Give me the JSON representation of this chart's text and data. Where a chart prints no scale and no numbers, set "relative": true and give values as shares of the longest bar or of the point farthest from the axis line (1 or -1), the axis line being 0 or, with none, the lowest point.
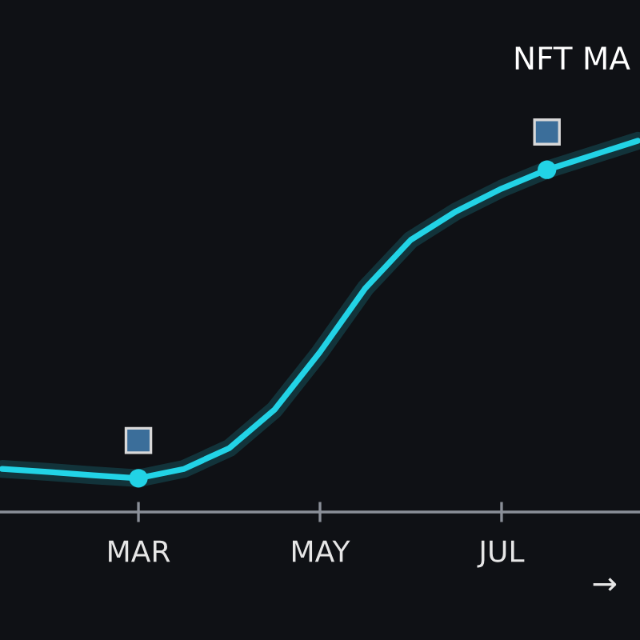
{
  "chart_data": {
    "type": "line",
    "title": "NFT MA",
    "relative": true,
    "categories": [
      null,
      null,
      null,
      "MAR",
      null,
      null,
      null,
      "MAY",
      null,
      null,
      null,
      "JUL",
      null,
      null,
      null
    ],
    "series": [
      {
        "color": "#22d3e6",
        "values": [
          0.116,
          0.108,
          0.099,
          0.091,
          0.116,
          0.172,
          0.276,
          0.431,
          0.603,
          0.733,
          0.81,
          0.871,
          0.922,
          0.961,
          1
        ]
      },
      {
        "type": "scatter",
        "color": "#22d3e6",
        "values": [
          null,
          null,
          null,
          0.091,
          null,
          null,
          null,
          null,
          null,
          null,
          null,
          null,
          0.922,
          null,
          null
        ]
      }
    ],
    "annotations": [
      "→"
    ],
    "grid": false,
    "legend": false
  }
}
